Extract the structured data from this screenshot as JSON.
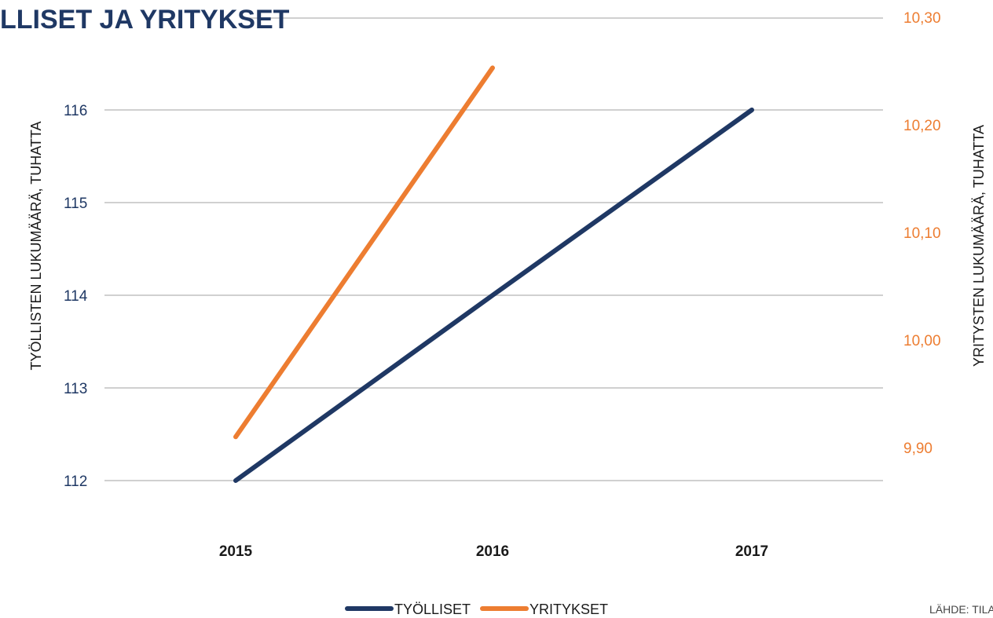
{
  "chart_data": {
    "type": "line",
    "title": "LLISET JA YRITYKSET",
    "categories": [
      "2015",
      "2016",
      "2017"
    ],
    "ylabel_left": "TYÖLLISTEN LUKUMÄÄRÄ, TUHATTA",
    "ylabel_right": "YRITYSTEN LUKUMÄÄRÄ, TUHATTA",
    "y_left": {
      "ticks": [
        "112",
        "113",
        "114",
        "115",
        "116"
      ],
      "lim": [
        112,
        116
      ]
    },
    "y_right": {
      "ticks": [
        "9,90",
        "10,00",
        "10,10",
        "10,20",
        "10,30"
      ],
      "lim": [
        9.9,
        10.3
      ]
    },
    "series": [
      {
        "name": "TYÖLLISET",
        "axis": "left",
        "color": "#1f3864",
        "values": [
          112,
          114,
          116
        ]
      },
      {
        "name": "YRITYKSET",
        "axis": "right",
        "color": "#ed7d31",
        "values": [
          9.91,
          10.253,
          null
        ]
      }
    ],
    "grid": true,
    "legend": "bottom-center",
    "source": "LÄHDE: TILAS"
  }
}
